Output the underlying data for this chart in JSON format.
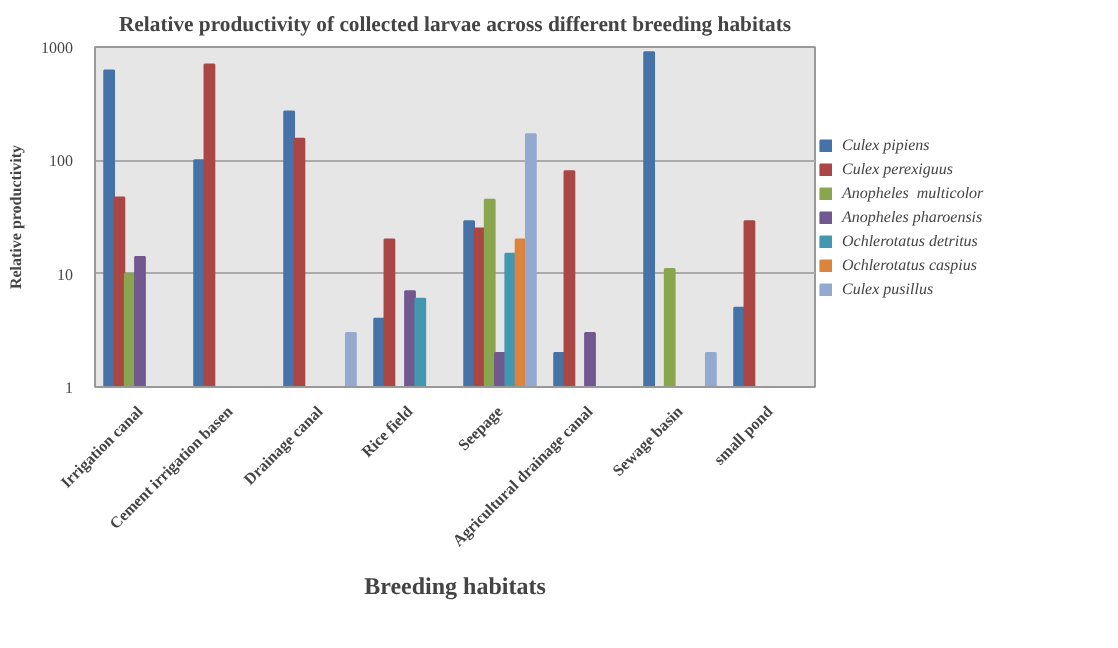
{
  "chart_data": {
    "type": "bar",
    "title": "Relative productivity of collected larvae across different breeding habitats",
    "xlabel": "Breeding habitats",
    "ylabel": "Relative productivity",
    "categories": [
      "Irrigation canal",
      "Cement irrigation basen",
      "Drainage canal",
      "Rice field",
      "Seepage",
      "Agricultural drainage canal",
      "Sewage basin",
      "small pond"
    ],
    "series": [
      {
        "name": "Culex pipiens",
        "color": "#4572a7",
        "values": [
          620,
          100,
          270,
          4,
          29,
          2,
          900,
          5
        ]
      },
      {
        "name": "Culex perexiguus",
        "color": "#aa4643",
        "values": [
          47,
          700,
          155,
          20,
          25,
          80,
          null,
          29
        ]
      },
      {
        "name": "Anopheles  multicolor",
        "color": "#89a54e",
        "values": [
          10,
          null,
          null,
          null,
          45,
          null,
          11,
          null
        ]
      },
      {
        "name": "Anopheles pharoensis",
        "color": "#71588f",
        "values": [
          14,
          null,
          null,
          7,
          2,
          3,
          null,
          null
        ]
      },
      {
        "name": "Ochlerotatus detritus",
        "color": "#4198af",
        "values": [
          null,
          null,
          null,
          6,
          15,
          null,
          null,
          null
        ]
      },
      {
        "name": "Ochlerotatus caspius",
        "color": "#db843d",
        "values": [
          null,
          null,
          null,
          null,
          20,
          null,
          null,
          null
        ]
      },
      {
        "name": "Culex pusillus",
        "color": "#93a9cf",
        "values": [
          null,
          null,
          3,
          null,
          170,
          null,
          2,
          null
        ]
      }
    ],
    "log": true,
    "ylim": [
      1,
      1000
    ],
    "yticks": [
      1,
      10,
      100,
      1000
    ],
    "grid": "y",
    "legend": "right"
  }
}
